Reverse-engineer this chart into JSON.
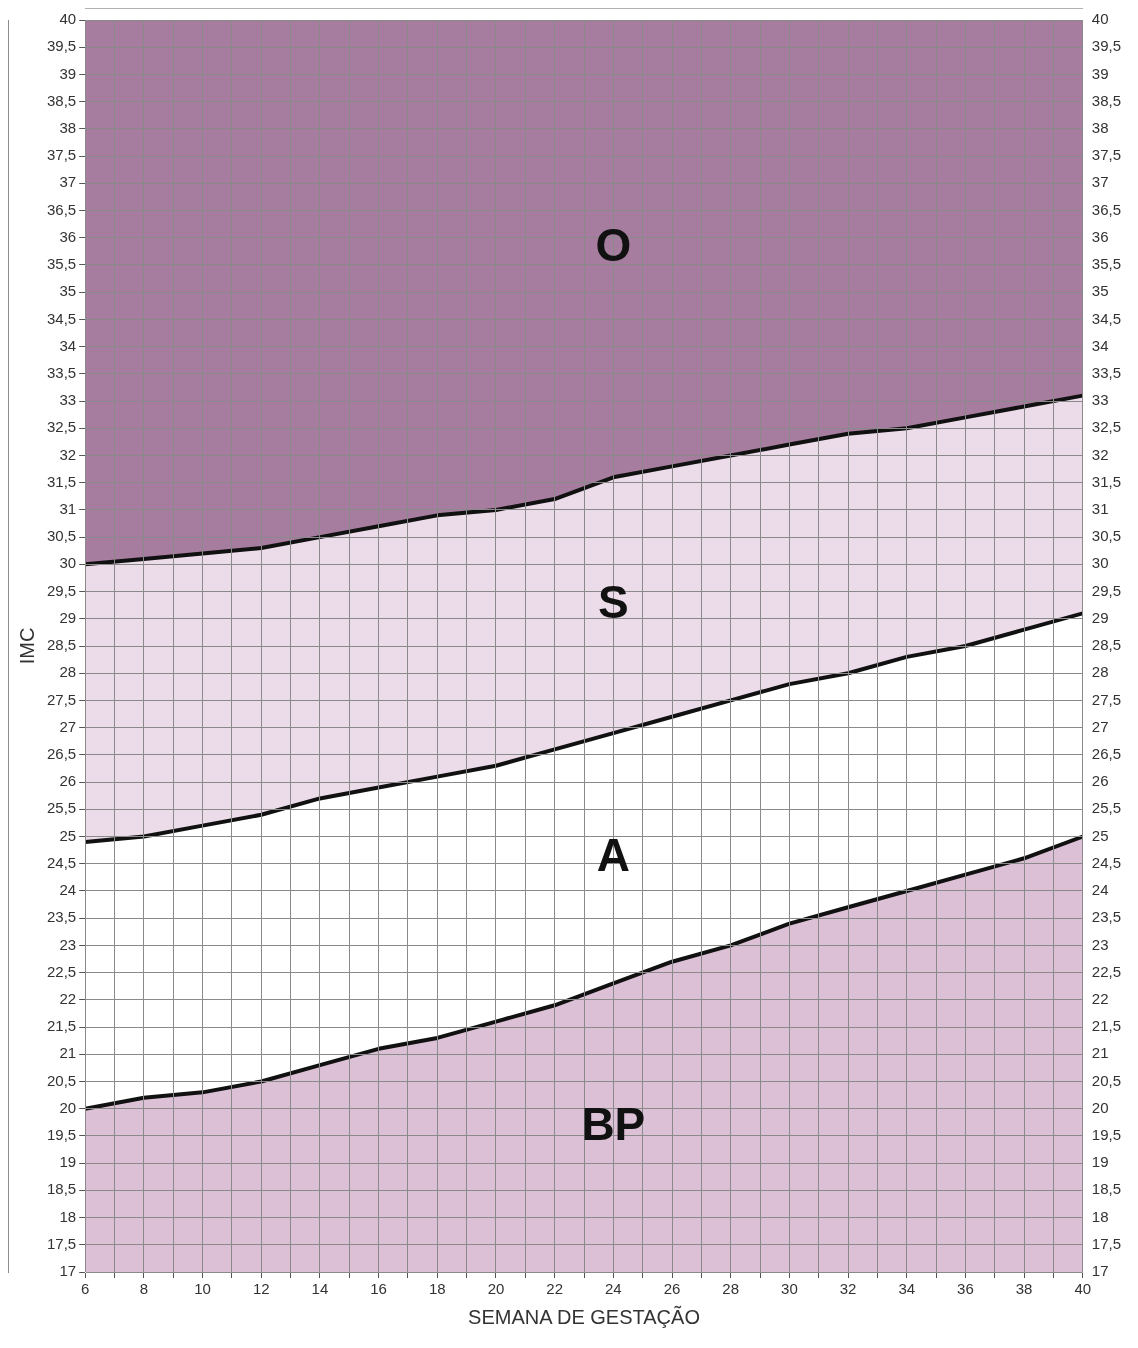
{
  "chart_data": {
    "type": "area",
    "xlabel": "SEMANA DE GESTAÇÃO",
    "ylabel": "IMC",
    "x": [
      6,
      8,
      10,
      12,
      14,
      16,
      18,
      20,
      22,
      24,
      26,
      28,
      30,
      32,
      34,
      36,
      38,
      40
    ],
    "series": [
      {
        "color": "#ecdcea",
        "values": [
          30.0,
          30.1,
          30.2,
          30.3,
          30.5,
          30.7,
          30.9,
          31.0,
          31.2,
          31.6,
          31.8,
          32.0,
          32.2,
          32.4,
          32.5,
          32.7,
          32.9,
          33.1
        ]
      },
      {
        "color": "#ffffff",
        "values": [
          24.9,
          25.0,
          25.2,
          25.4,
          25.7,
          25.9,
          26.1,
          26.3,
          26.6,
          26.9,
          27.2,
          27.5,
          27.8,
          28.0,
          28.3,
          28.5,
          28.8,
          29.1
        ]
      },
      {
        "color": "#dcc0d6",
        "values": [
          20.0,
          20.2,
          20.3,
          20.5,
          20.8,
          21.1,
          21.3,
          21.6,
          21.9,
          22.3,
          22.7,
          23.0,
          23.4,
          23.7,
          24.0,
          24.3,
          24.6,
          25.0
        ]
      }
    ],
    "bands": [
      {
        "axis": "y",
        "from": 30,
        "to": 40,
        "color": "#a77d9f"
      }
    ],
    "annotations": [
      "O",
      "S",
      "A",
      "BP"
    ],
    "xlim": [
      6,
      40
    ],
    "xticks": [
      6,
      {
        "value": 7,
        "label": null
      },
      8,
      {
        "value": 9,
        "label": null
      },
      10,
      {
        "value": 11,
        "label": null
      },
      12,
      {
        "value": 13,
        "label": null
      },
      14,
      {
        "value": 15,
        "label": null
      },
      16,
      {
        "value": 17,
        "label": null
      },
      18,
      {
        "value": 19,
        "label": null
      },
      20,
      {
        "value": 21,
        "label": null
      },
      22,
      {
        "value": 23,
        "label": null
      },
      24,
      {
        "value": 25,
        "label": null
      },
      26,
      {
        "value": 27,
        "label": null
      },
      28,
      {
        "value": 29,
        "label": null
      },
      30,
      {
        "value": 31,
        "label": null
      },
      32,
      {
        "value": 33,
        "label": null
      },
      34,
      {
        "value": 35,
        "label": null
      },
      36,
      {
        "value": 37,
        "label": null
      },
      38,
      {
        "value": 39,
        "label": null
      },
      40
    ],
    "ylim": [
      17,
      40
    ],
    "yticks": [
      17,
      {
        "value": 17.5,
        "label": "17,5"
      },
      18,
      {
        "value": 18.5,
        "label": "18,5"
      },
      19,
      {
        "value": 19.5,
        "label": "19,5"
      },
      20,
      {
        "value": 20.5,
        "label": "20,5"
      },
      21,
      {
        "value": 21.5,
        "label": "21,5"
      },
      22,
      {
        "value": 22.5,
        "label": "22,5"
      },
      23,
      {
        "value": 23.5,
        "label": "23,5"
      },
      24,
      {
        "value": 24.5,
        "label": "24,5"
      },
      25,
      {
        "value": 25.5,
        "label": "25,5"
      },
      26,
      {
        "value": 26.5,
        "label": "26,5"
      },
      27,
      {
        "value": 27.5,
        "label": "27,5"
      },
      28,
      {
        "value": 28.5,
        "label": "28,5"
      },
      29,
      {
        "value": 29.5,
        "label": "29,5"
      },
      30,
      {
        "value": 30.5,
        "label": "30,5"
      },
      31,
      {
        "value": 31.5,
        "label": "31,5"
      },
      32,
      {
        "value": 32.5,
        "label": "32,5"
      },
      33,
      {
        "value": 33.5,
        "label": "33,5"
      },
      34,
      {
        "value": 34.5,
        "label": "34,5"
      },
      35,
      {
        "value": 35.5,
        "label": "35,5"
      },
      36,
      {
        "value": 36.5,
        "label": "36,5"
      },
      37,
      {
        "value": 37.5,
        "label": "37,5"
      },
      38,
      {
        "value": 38.5,
        "label": "38,5"
      },
      39,
      {
        "value": 39.5,
        "label": "39,5"
      },
      40
    ],
    "y2lim": [
      17,
      40
    ],
    "y2ticks": [
      17,
      {
        "value": 17.5,
        "label": "17,5"
      },
      18,
      {
        "value": 18.5,
        "label": "18,5"
      },
      19,
      {
        "value": 19.5,
        "label": "19,5"
      },
      20,
      {
        "value": 20.5,
        "label": "20,5"
      },
      21,
      {
        "value": 21.5,
        "label": "21,5"
      },
      22,
      {
        "value": 22.5,
        "label": "22,5"
      },
      23,
      {
        "value": 23.5,
        "label": "23,5"
      },
      24,
      {
        "value": 24.5,
        "label": "24,5"
      },
      25,
      {
        "value": 25.5,
        "label": "25,5"
      },
      26,
      {
        "value": 26.5,
        "label": "26,5"
      },
      27,
      {
        "value": 27.5,
        "label": "27,5"
      },
      28,
      {
        "value": 28.5,
        "label": "28,5"
      },
      29,
      {
        "value": 29.5,
        "label": "29,5"
      },
      30,
      {
        "value": 30.5,
        "label": "30,5"
      },
      31,
      {
        "value": 31.5,
        "label": "31,5"
      },
      32,
      {
        "value": 32.5,
        "label": "32,5"
      },
      33,
      {
        "value": 33.5,
        "label": "33,5"
      },
      34,
      {
        "value": 34.5,
        "label": "34,5"
      },
      35,
      {
        "value": 35.5,
        "label": "35,5"
      },
      36,
      {
        "value": 36.5,
        "label": "36,5"
      },
      37,
      {
        "value": 37.5,
        "label": "37,5"
      },
      38,
      {
        "value": 38.5,
        "label": "38,5"
      },
      39,
      {
        "value": 39.5,
        "label": "39,5"
      },
      40
    ],
    "grid": true,
    "legend": false,
    "marker": "none",
    "line_style": "solid"
  }
}
